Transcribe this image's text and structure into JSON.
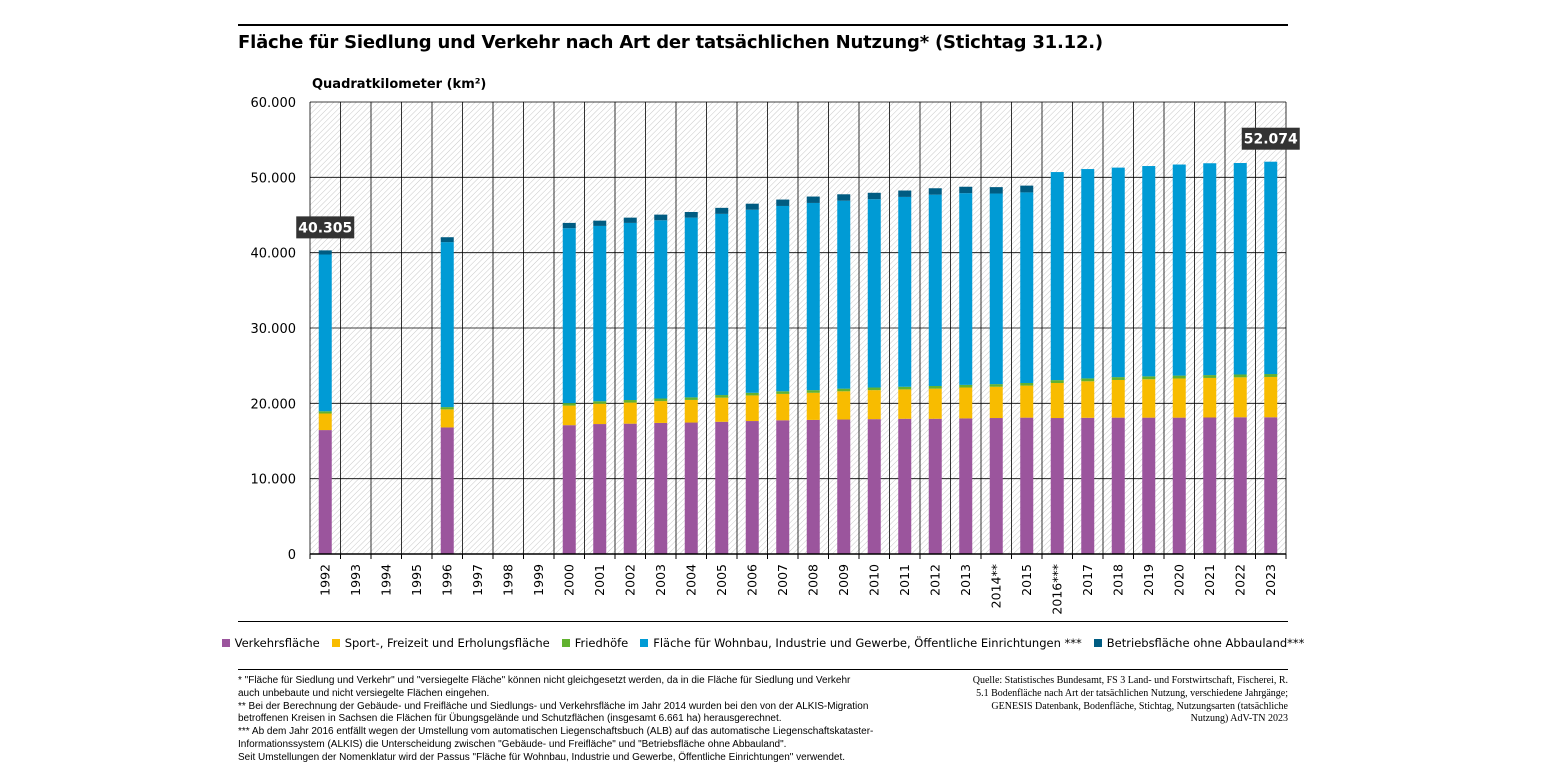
{
  "title": "Fläche für Siedlung und Verkehr nach Art der tatsächlichen Nutzung* (Stichtag 31.12.)",
  "chart_data": {
    "type": "bar",
    "stacked": true,
    "ylabel": "Quadratkilometer (km²)",
    "ylim": [
      0,
      60000
    ],
    "yticks": [
      0,
      10000,
      20000,
      30000,
      40000,
      50000,
      60000
    ],
    "ytick_labels": [
      "0",
      "10.000",
      "20.000",
      "30.000",
      "40.000",
      "50.000",
      "60.000"
    ],
    "grid": true,
    "legend_position": "bottom",
    "categories": [
      "1992",
      "1993",
      "1994",
      "1995",
      "1996",
      "1997",
      "1998",
      "1999",
      "2000",
      "2001",
      "2002",
      "2003",
      "2004",
      "2005",
      "2006",
      "2007",
      "2008",
      "2009",
      "2010",
      "2011",
      "2012",
      "2013",
      "2014**",
      "2015",
      "2016***",
      "2017",
      "2018",
      "2019",
      "2020",
      "2021",
      "2022",
      "2023"
    ],
    "series": [
      {
        "name": "Verkehrsfläche",
        "color": "#9b559d",
        "values": [
          16450,
          null,
          null,
          null,
          16800,
          null,
          null,
          null,
          17100,
          17250,
          17300,
          17400,
          17450,
          17550,
          17650,
          17750,
          17800,
          17850,
          17900,
          17950,
          17950,
          18000,
          18050,
          18100,
          18050,
          18080,
          18100,
          18100,
          18100,
          18120,
          18150,
          18150
        ]
      },
      {
        "name": "Sport-, Freizeit und Erholungsfläche",
        "color": "#f8bc00",
        "values": [
          2200,
          null,
          null,
          null,
          2400,
          null,
          null,
          null,
          2600,
          2700,
          2800,
          2900,
          3000,
          3200,
          3400,
          3500,
          3600,
          3750,
          3850,
          3900,
          4000,
          4100,
          4150,
          4250,
          4650,
          4850,
          5000,
          5100,
          5200,
          5250,
          5300,
          5350
        ]
      },
      {
        "name": "Friedhöfe",
        "color": "#61b22f",
        "values": [
          300,
          null,
          null,
          null,
          300,
          null,
          null,
          null,
          330,
          330,
          340,
          340,
          340,
          350,
          350,
          350,
          350,
          350,
          350,
          350,
          350,
          350,
          350,
          350,
          380,
          380,
          380,
          380,
          380,
          380,
          380,
          390
        ]
      },
      {
        "name": "Fläche für Wohnbau, Industrie und Gewerbe, Öffentliche Einrichtungen ***",
        "color": "#009bd5",
        "values": [
          20805,
          null,
          null,
          null,
          21900,
          null,
          null,
          null,
          23220,
          23270,
          23510,
          23660,
          23860,
          24050,
          24300,
          24600,
          24850,
          24950,
          25000,
          25200,
          25400,
          25450,
          25300,
          25300,
          27620,
          27790,
          27810,
          27920,
          28020,
          28120,
          28070,
          28184
        ]
      },
      {
        "name": "Betriebsfläche ohne Abbauland***",
        "color": "#005c82",
        "values": [
          550,
          null,
          null,
          null,
          650,
          null,
          null,
          null,
          700,
          700,
          700,
          750,
          750,
          800,
          800,
          850,
          850,
          850,
          850,
          850,
          850,
          850,
          850,
          900,
          0,
          0,
          0,
          0,
          0,
          0,
          0,
          0
        ]
      }
    ],
    "annotations": [
      {
        "category": "1992",
        "text": "40.305"
      },
      {
        "category": "2023",
        "text": "52.074"
      }
    ]
  },
  "legend": [
    {
      "label": "Verkehrsfläche",
      "color": "#9b559d"
    },
    {
      "label": "Sport-, Freizeit und Erholungsfläche",
      "color": "#f8bc00"
    },
    {
      "label": "Friedhöfe",
      "color": "#61b22f"
    },
    {
      "label": "Fläche für Wohnbau, Industrie und Gewerbe, Öffentliche Einrichtungen ***",
      "color": "#009bd5"
    },
    {
      "label": "Betriebsfläche ohne Abbauland***",
      "color": "#005c82"
    }
  ],
  "footnotes": [
    "* \"Fläche für Siedlung und Verkehr\" und \"versiegelte Fläche\" können nicht gleichgesetzt werden, da in die Fläche für Siedlung und Verkehr",
    "auch unbebaute und nicht versiegelte Flächen eingehen.",
    "** Bei der Berechnung der Gebäude- und Freifläche und Siedlungs- und Verkehrsfläche im Jahr 2014 wurden bei den von der ALKIS-Migration",
    "betroffenen Kreisen in Sachsen die Flächen für Übungsgelände und Schutzflächen (insgesamt 6.661 ha) herausgerechnet.",
    "*** Ab dem Jahr 2016 entfällt wegen der Umstellung vom automatischen Liegenschaftsbuch (ALB) auf das automatische Liegenschaftskataster-",
    "Informationssystem (ALKIS) die Unterscheidung zwischen \"Gebäude- und Freifläche\" und \"Betriebsfläche ohne Abbauland\".",
    "Seit Umstellungen der Nomenklatur wird der Passus \"Fläche für Wohnbau, Industrie und Gewerbe, Öffentliche Einrichtungen\" verwendet."
  ],
  "source": [
    "Quelle: Statistisches Bundesamt, FS 3 Land- und Forstwirtschaft, Fischerei, R.",
    "5.1 Bodenfläche nach Art der tatsächlichen Nutzung, verschiedene Jahrgänge;",
    "GENESIS Datenbank, Bodenfläche, Stichtag, Nutzungsarten (tatsächliche",
    "Nutzung) AdV-TN 2023"
  ]
}
